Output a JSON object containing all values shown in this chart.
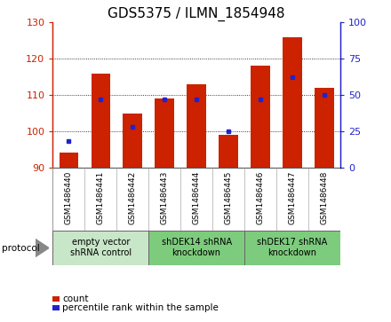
{
  "title": "GDS5375 / ILMN_1854948",
  "samples": [
    "GSM1486440",
    "GSM1486441",
    "GSM1486442",
    "GSM1486443",
    "GSM1486444",
    "GSM1486445",
    "GSM1486446",
    "GSM1486447",
    "GSM1486448"
  ],
  "count_values": [
    94.0,
    116.0,
    105.0,
    109.0,
    113.0,
    99.0,
    118.0,
    126.0,
    112.0
  ],
  "percentile_values": [
    18,
    47,
    28,
    47,
    47,
    25,
    47,
    62,
    50
  ],
  "ylim_left": [
    90,
    130
  ],
  "ylim_right": [
    0,
    100
  ],
  "yticks_left": [
    90,
    100,
    110,
    120,
    130
  ],
  "yticks_right": [
    0,
    25,
    50,
    75,
    100
  ],
  "bar_color": "#cc2200",
  "dot_color": "#2222cc",
  "bar_bottom": 90,
  "groups": [
    {
      "label": "empty vector\nshRNA control",
      "start": 0,
      "end": 3
    },
    {
      "label": "shDEK14 shRNA\nknockdown",
      "start": 3,
      "end": 6
    },
    {
      "label": "shDEK17 shRNA\nknockdown",
      "start": 6,
      "end": 9
    }
  ],
  "group_colors": [
    "#c8e6c8",
    "#7dcc7d",
    "#7dcc7d"
  ],
  "legend_count_label": "count",
  "legend_pct_label": "percentile rank within the sample",
  "protocol_label": "protocol",
  "sample_bg_color": "#d8d8d8",
  "plot_bg": "#ffffff",
  "title_fontsize": 11,
  "tick_fontsize": 8,
  "sample_fontsize": 6.5,
  "group_fontsize": 7
}
